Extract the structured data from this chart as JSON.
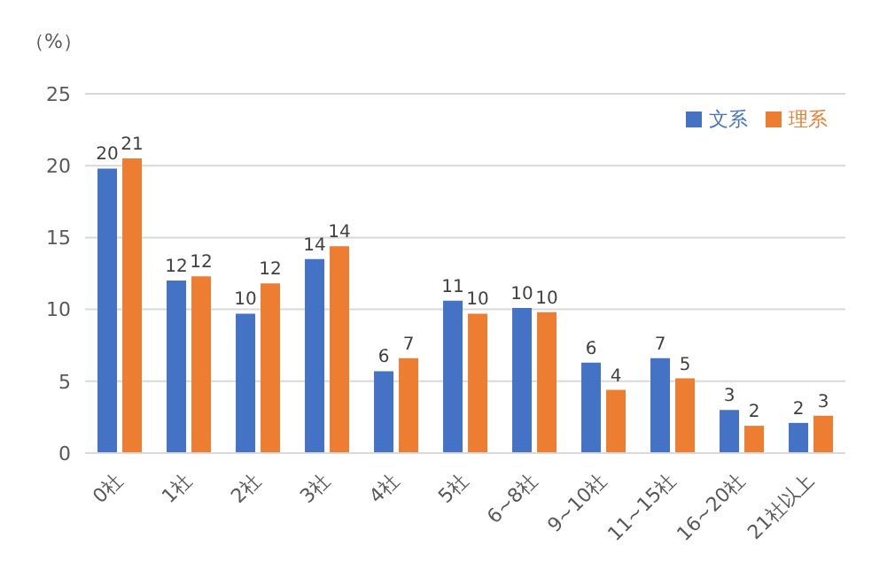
{
  "chart_data": {
    "type": "bar",
    "ylabel": "（%）",
    "categories": [
      "0社",
      "1社",
      "2社",
      "3社",
      "4社",
      "5社",
      "6~8社",
      "9~10社",
      "11~15社",
      "16~20社",
      "21社以上"
    ],
    "series": [
      {
        "name": "文系",
        "color": "#4472c4",
        "values": [
          19.8,
          12.0,
          9.7,
          13.5,
          5.7,
          10.6,
          10.1,
          6.3,
          6.6,
          3.0,
          2.1
        ],
        "value_labels": [
          "20",
          "12",
          "10",
          "14",
          "6",
          "11",
          "10",
          "6",
          "7",
          "3",
          "2"
        ]
      },
      {
        "name": "理系",
        "color": "#ed7d31",
        "values": [
          20.5,
          12.3,
          11.8,
          14.4,
          6.6,
          9.7,
          9.8,
          4.4,
          5.2,
          1.9,
          2.6
        ],
        "value_labels": [
          "21",
          "12",
          "12",
          "14",
          "7",
          "10",
          "10",
          "4",
          "5",
          "2",
          "3"
        ]
      }
    ],
    "ylim": [
      0,
      25
    ],
    "yticks": [
      0,
      5,
      10,
      15,
      20,
      25
    ],
    "grid": "y",
    "legend": "top right"
  }
}
